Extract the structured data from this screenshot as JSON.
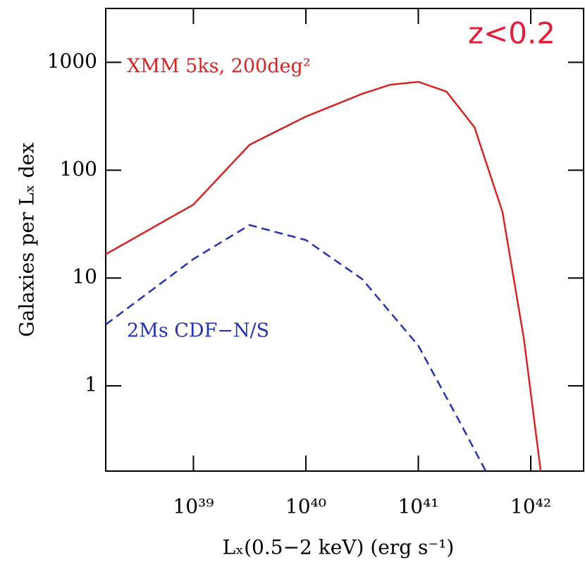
{
  "chart_data": {
    "type": "line",
    "annotation": "z<0.2",
    "xlabel": "Lₓ(0.5−2 keV)   (erg s⁻¹)",
    "ylabel": "Galaxies per Lₓ dex",
    "xscale": "log",
    "yscale": "log",
    "xlim": [
      1.66e+38,
      2.95e+42
    ],
    "ylim": [
      0.162,
      3160
    ],
    "xticks": [
      {
        "value": 1e+39,
        "label": "10³⁹"
      },
      {
        "value": 1e+40,
        "label": "10⁴⁰"
      },
      {
        "value": 1e+41,
        "label": "10⁴¹"
      },
      {
        "value": 1e+42,
        "label": "10⁴²"
      }
    ],
    "yticks": [
      1,
      10,
      100,
      1000
    ],
    "series": [
      {
        "name": "XMM 5ks, 200deg²",
        "color": "#d42525",
        "dash": false,
        "x": [
          1.66e+38,
          1e+39,
          3.16e+39,
          1e+40,
          3.16e+40,
          5.6e+40,
          1e+41,
          1.78e+41,
          3.16e+41,
          5.6e+41,
          8.7e+41,
          1.3e+42
        ],
        "values": [
          16.6,
          48,
          172,
          314,
          510,
          620,
          660,
          535,
          250,
          41,
          2.7,
          0.1
        ]
      },
      {
        "name": "2Ms CDF−N/S",
        "color": "#2233b0",
        "dash": true,
        "x": [
          1.66e+38,
          1e+39,
          3.16e+39,
          1e+40,
          3.16e+40,
          1e+41,
          2.37e+41,
          4e+41
        ],
        "values": [
          3.7,
          15,
          31,
          22.5,
          9.8,
          2.36,
          0.45,
          0.16
        ]
      }
    ]
  }
}
